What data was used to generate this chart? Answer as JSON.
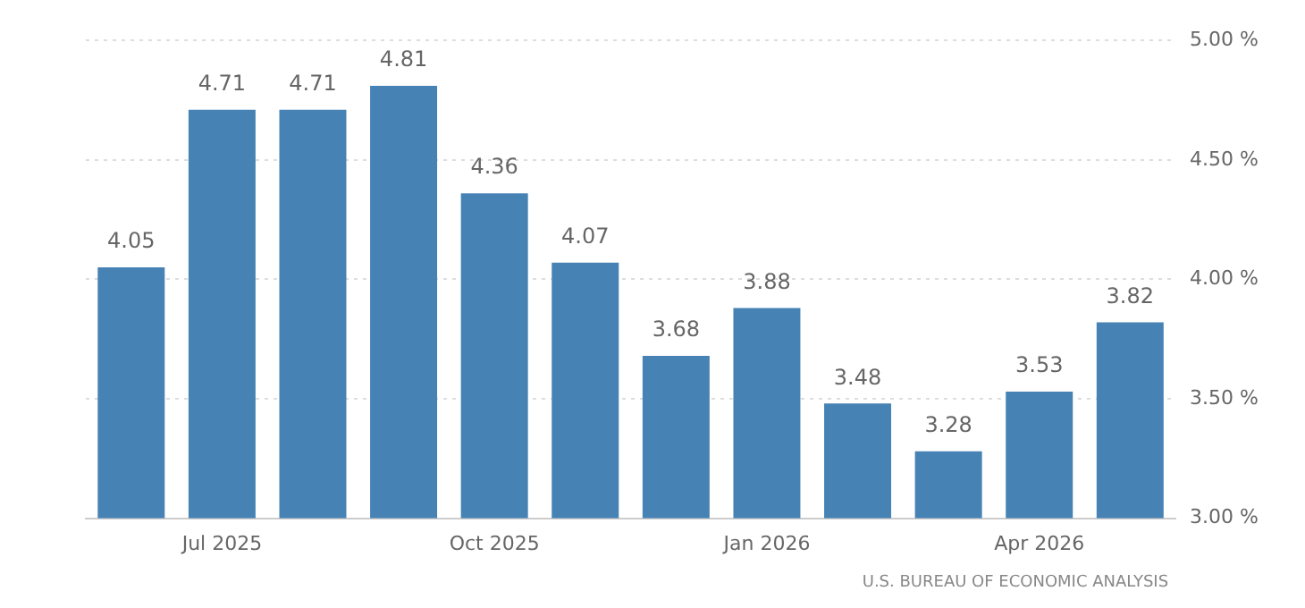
{
  "chart_data": {
    "type": "bar",
    "categories": [
      null,
      "Jul 2025",
      null,
      null,
      "Oct 2025",
      null,
      null,
      "Jan 2026",
      null,
      null,
      "Apr 2026",
      null
    ],
    "values": [
      4.05,
      4.71,
      4.71,
      4.81,
      4.36,
      4.07,
      3.68,
      3.88,
      3.48,
      3.28,
      3.53,
      3.82
    ],
    "color": "#4682b4",
    "ylim": [
      3,
      5
    ],
    "yticks": [
      {
        "value": 3,
        "label": "3.00 %"
      },
      {
        "value": 3.5,
        "label": "3.50 %"
      },
      {
        "value": 4,
        "label": "4.00 %"
      },
      {
        "value": 4.5,
        "label": "4.50 %"
      },
      {
        "value": 5,
        "label": "5.00 %"
      }
    ],
    "grid": "y",
    "legend": false,
    "data_labels": true,
    "annotations": [
      "U.S. BUREAU OF ECONOMIC ANALYSIS"
    ]
  }
}
